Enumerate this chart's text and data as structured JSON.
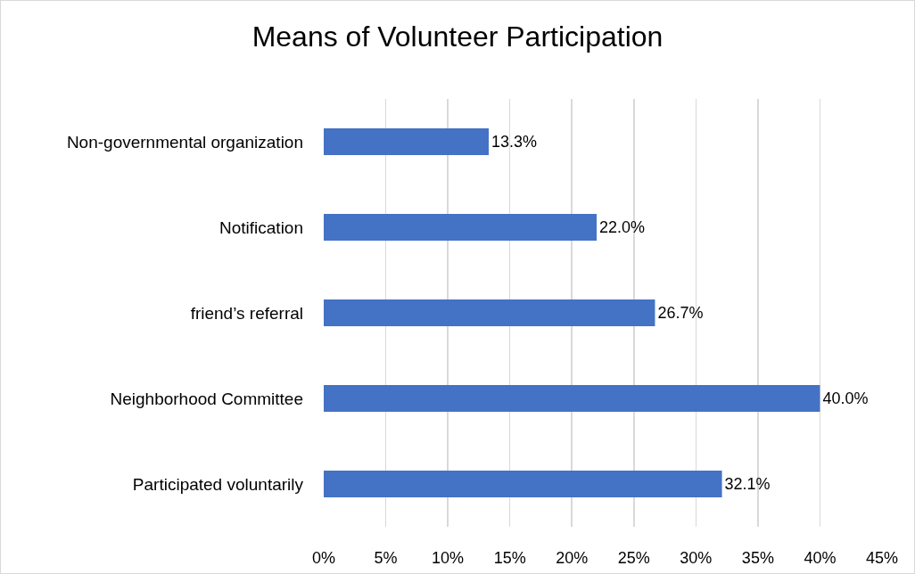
{
  "chart_data": {
    "type": "bar",
    "orientation": "horizontal",
    "title": "Means of Volunteer Participation",
    "categories": [
      "Non-governmental organization",
      "Notification",
      "friend’s referral",
      "Neighborhood Committee",
      "Participated voluntarily"
    ],
    "values": [
      13.3,
      22.0,
      26.7,
      40.0,
      32.1
    ],
    "value_labels": [
      "13.3%",
      "22.0%",
      "26.7%",
      "40.0%",
      "32.1%"
    ],
    "color": "#4472c4",
    "xlim": [
      0,
      45
    ],
    "xticks": [
      {
        "value": 0,
        "label": "0%"
      },
      {
        "value": 5,
        "label": "5%"
      },
      {
        "value": 10,
        "label": "10%"
      },
      {
        "value": 15,
        "label": "15%"
      },
      {
        "value": 20,
        "label": "20%"
      },
      {
        "value": 25,
        "label": "25%"
      },
      {
        "value": 30,
        "label": "30%"
      },
      {
        "value": 35,
        "label": "35%"
      },
      {
        "value": 40,
        "label": "40%"
      },
      {
        "value": 45,
        "label": "45%"
      }
    ],
    "grid": "x"
  }
}
